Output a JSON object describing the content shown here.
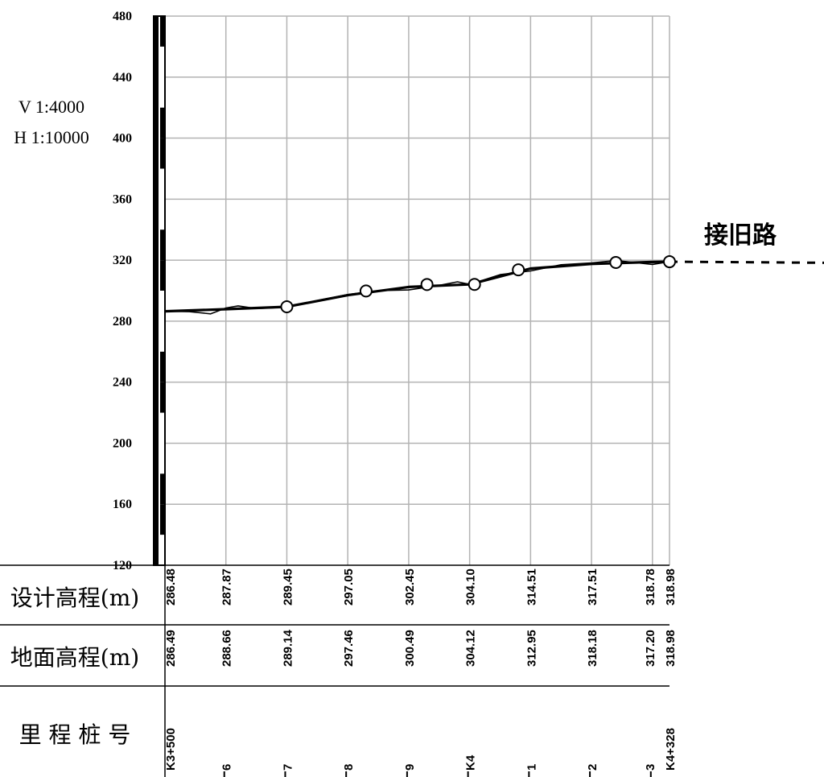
{
  "scale": {
    "vertical": "V 1:4000",
    "horizontal": "H 1:10000"
  },
  "note": "接旧路",
  "table": {
    "design_label": "设计高程(m)",
    "ground_label": "地面高程(m)",
    "station_label": "里 程 桩 号"
  },
  "chart_data": {
    "type": "line",
    "title": "",
    "xlabel": "",
    "ylabel": "",
    "yticks": [
      480,
      440,
      400,
      360,
      320,
      280,
      240,
      200,
      160,
      120
    ],
    "ylim": [
      120,
      480
    ],
    "xlim_m": [
      3500,
      4328
    ],
    "grid": true,
    "design_labels": [
      {
        "x": 3500,
        "text": "286.48"
      },
      {
        "x": 3600,
        "text": "287.87"
      },
      {
        "x": 3700,
        "text": "289.45"
      },
      {
        "x": 3800,
        "text": "297.05"
      },
      {
        "x": 3900,
        "text": "302.45"
      },
      {
        "x": 4000,
        "text": "304.10"
      },
      {
        "x": 4100,
        "text": "314.51"
      },
      {
        "x": 4200,
        "text": "317.51"
      },
      {
        "x": 4300,
        "text": "318.78"
      },
      {
        "x": 4328,
        "text": "318.98"
      }
    ],
    "ground_labels": [
      {
        "x": 3500,
        "text": "286.49"
      },
      {
        "x": 3600,
        "text": "288.66"
      },
      {
        "x": 3700,
        "text": "289.14"
      },
      {
        "x": 3800,
        "text": "297.46"
      },
      {
        "x": 3900,
        "text": "300.49"
      },
      {
        "x": 4000,
        "text": "304.12"
      },
      {
        "x": 4100,
        "text": "312.95"
      },
      {
        "x": 4200,
        "text": "318.18"
      },
      {
        "x": 4300,
        "text": "317.20"
      },
      {
        "x": 4328,
        "text": "318.98"
      }
    ],
    "stations": [
      {
        "x": 3500,
        "text": "K3+500"
      },
      {
        "x": 3600,
        "text": "6"
      },
      {
        "x": 3700,
        "text": "7"
      },
      {
        "x": 3800,
        "text": "8"
      },
      {
        "x": 3900,
        "text": "9"
      },
      {
        "x": 4000,
        "text": "K4"
      },
      {
        "x": 4100,
        "text": "1"
      },
      {
        "x": 4200,
        "text": "2"
      },
      {
        "x": 4300,
        "text": "3"
      },
      {
        "x": 4328,
        "text": "K4+328"
      }
    ],
    "series": [
      {
        "role": "design",
        "points": [
          [
            3500,
            286.48
          ],
          [
            3600,
            287.87
          ],
          [
            3700,
            289.45
          ],
          [
            3800,
            297.05
          ],
          [
            3900,
            302.45
          ],
          [
            4000,
            304.1
          ],
          [
            4100,
            314.51
          ],
          [
            4200,
            317.51
          ],
          [
            4300,
            318.78
          ],
          [
            4328,
            318.98
          ]
        ]
      },
      {
        "role": "ground",
        "points": [
          [
            3500,
            286.49
          ],
          [
            3540,
            286.2
          ],
          [
            3575,
            284.8
          ],
          [
            3600,
            288.66
          ],
          [
            3620,
            290.0
          ],
          [
            3650,
            288.3
          ],
          [
            3700,
            289.14
          ],
          [
            3750,
            293.5
          ],
          [
            3800,
            297.46
          ],
          [
            3850,
            300.0
          ],
          [
            3900,
            300.49
          ],
          [
            3950,
            303.5
          ],
          [
            3980,
            305.8
          ],
          [
            4000,
            304.12
          ],
          [
            4050,
            310.5
          ],
          [
            4100,
            312.95
          ],
          [
            4150,
            317.0
          ],
          [
            4200,
            318.18
          ],
          [
            4240,
            319.8
          ],
          [
            4300,
            317.2
          ],
          [
            4328,
            318.98
          ]
        ]
      }
    ],
    "grade_points": [
      [
        3700,
        289.45
      ],
      [
        3830,
        299.8
      ],
      [
        3930,
        304.05
      ],
      [
        4008,
        304.1
      ],
      [
        4080,
        313.67
      ],
      [
        4240,
        318.5
      ],
      [
        4328,
        318.98
      ]
    ],
    "old_road_link": [
      [
        4328,
        318.98
      ],
      [
        4600,
        318.3
      ]
    ]
  }
}
